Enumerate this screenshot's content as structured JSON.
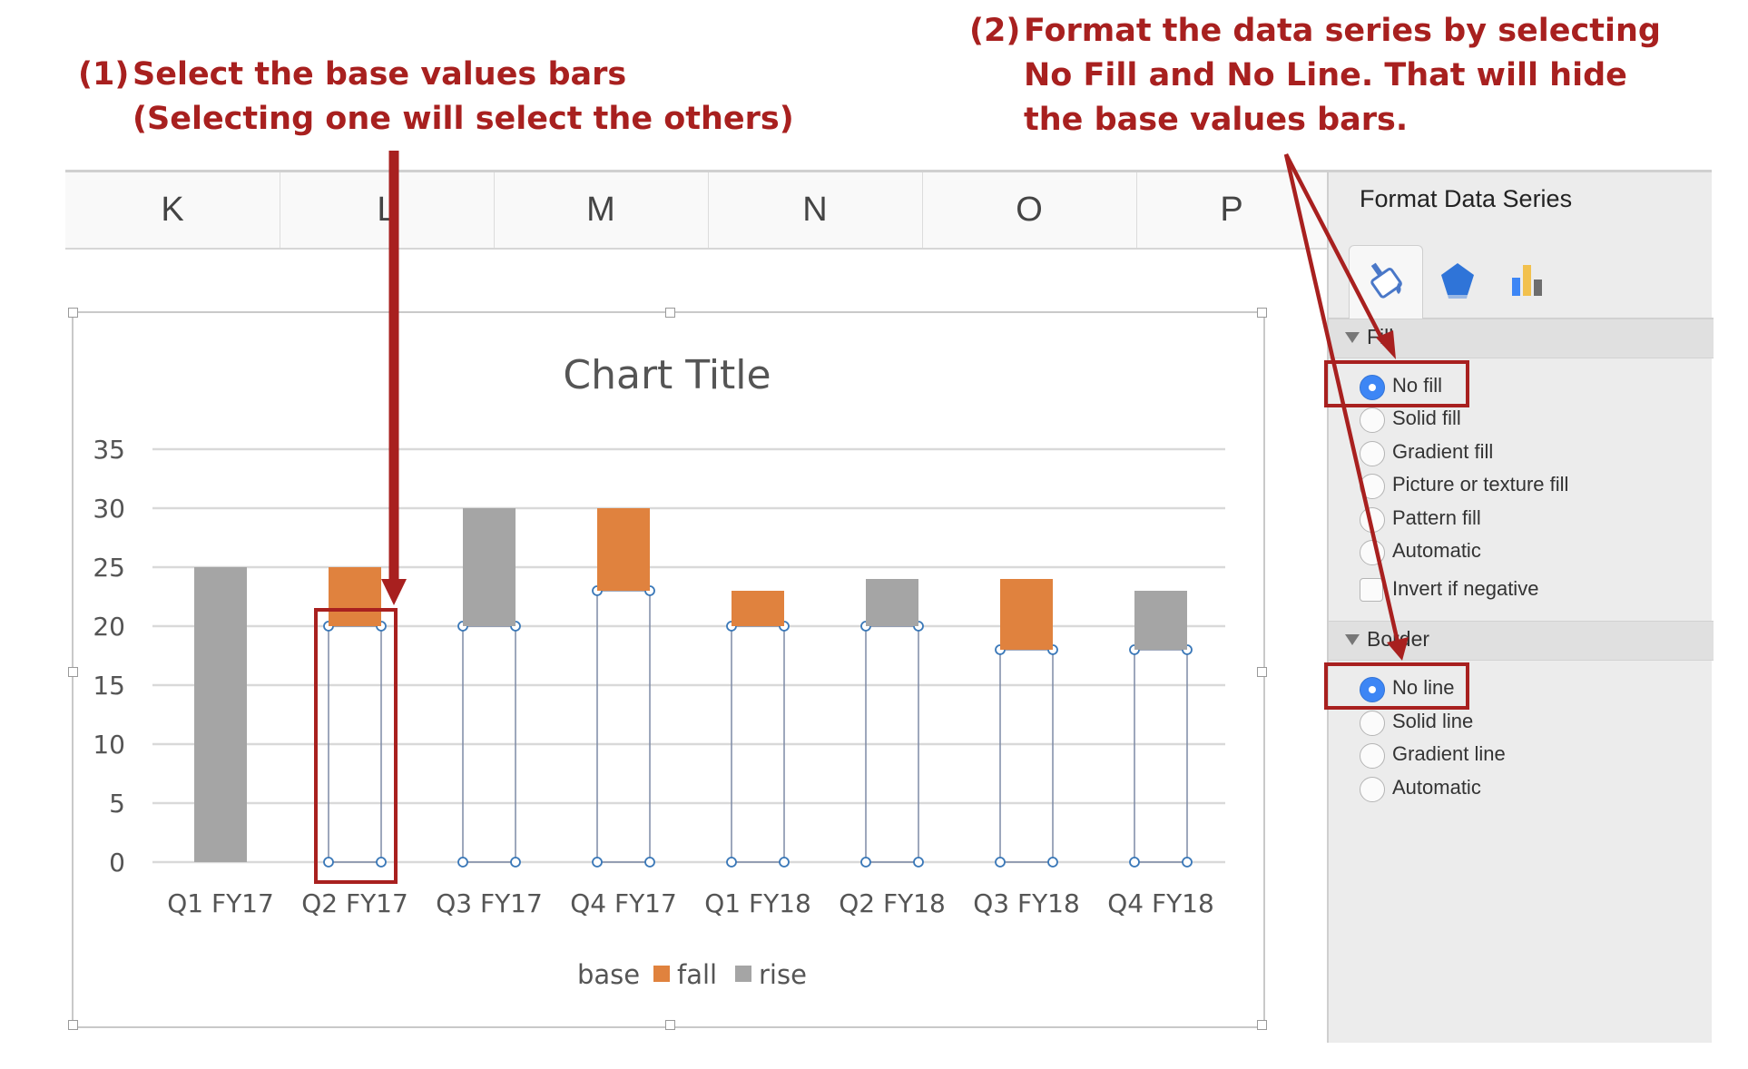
{
  "annotations": {
    "step1": {
      "number": "(1)",
      "lines": [
        "Select the base values bars",
        "(Selecting one will select the others)"
      ]
    },
    "step2": {
      "number": "(2)",
      "lines": [
        "Format the data series by selecting",
        "No Fill and No Line. That will hide",
        "the base values bars."
      ]
    }
  },
  "sheet": {
    "columns": [
      "K",
      "L",
      "M",
      "N",
      "O",
      "P"
    ]
  },
  "chart_data": {
    "type": "bar",
    "stacked": true,
    "title": "Chart Title",
    "categories": [
      "Q1 FY17",
      "Q2 FY17",
      "Q3 FY17",
      "Q4 FY17",
      "Q1 FY18",
      "Q2 FY18",
      "Q3 FY18",
      "Q4 FY18"
    ],
    "series": [
      {
        "name": "base",
        "values": [
          0,
          20,
          20,
          23,
          20,
          20,
          18,
          18
        ],
        "color": "none"
      },
      {
        "name": "fall",
        "values": [
          0,
          5,
          0,
          7,
          3,
          0,
          6,
          0
        ],
        "color": "#e0823e"
      },
      {
        "name": "rise",
        "values": [
          25,
          0,
          10,
          0,
          0,
          4,
          0,
          5
        ],
        "color": "#a5a5a5"
      }
    ],
    "yticks": [
      0,
      5,
      10,
      15,
      20,
      25,
      30,
      35
    ],
    "ylim": [
      0,
      35
    ],
    "grid": true,
    "legend": "bottom",
    "legend_labels": [
      "base",
      "fall",
      "rise"
    ],
    "selected_series": "base"
  },
  "panel": {
    "title": "Format Data Series",
    "tabs": [
      "fill-line-icon",
      "effects-icon",
      "series-options-icon"
    ],
    "fill": {
      "label": "Fill",
      "options": [
        "No fill",
        "Solid fill",
        "Gradient fill",
        "Picture or texture fill",
        "Pattern fill",
        "Automatic"
      ],
      "selected": "No fill",
      "invert_label": "Invert if negative"
    },
    "border": {
      "label": "Border",
      "options": [
        "No line",
        "Solid line",
        "Gradient line",
        "Automatic"
      ],
      "selected": "No line"
    }
  },
  "colors": {
    "annotation": "#a8201f",
    "accent_blue": "#3d86f5"
  }
}
